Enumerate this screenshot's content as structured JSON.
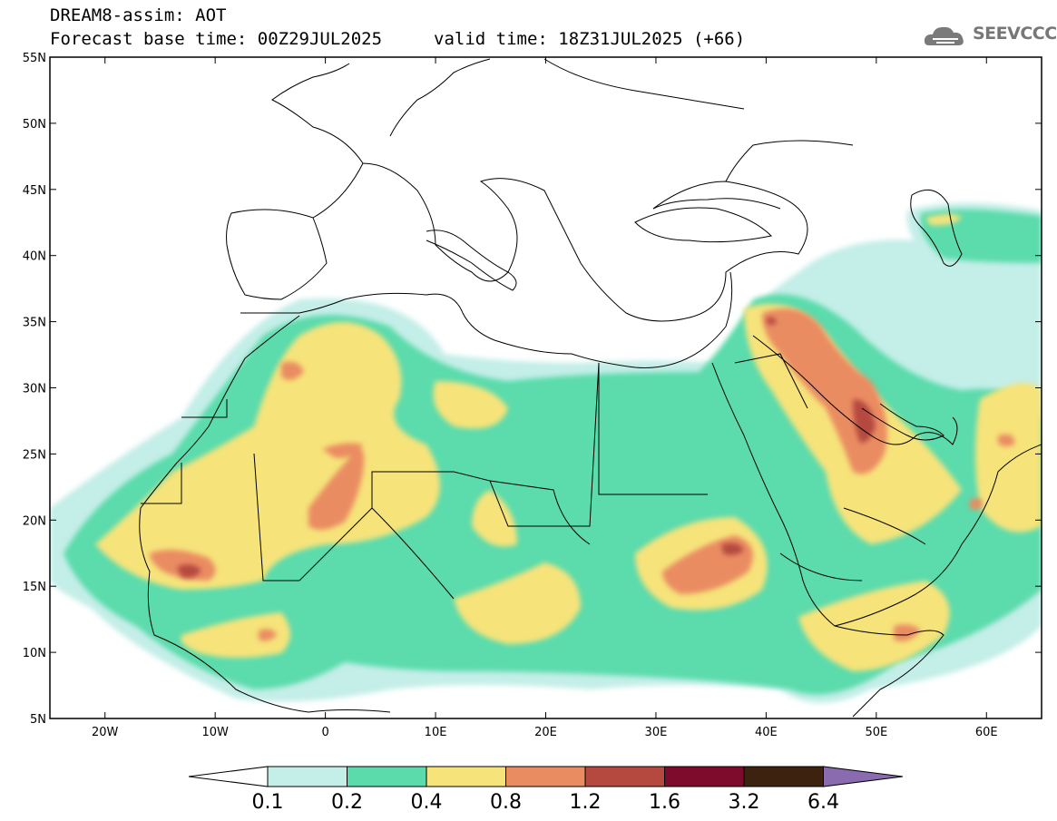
{
  "header": {
    "model_line": "DREAM8-assim: AOT",
    "base_time_line": "Forecast base time: 00Z29JUL2025",
    "valid_time_line": "valid time: 18Z31JUL2025 (+66)",
    "logo_text": "SEEVCCC"
  },
  "map": {
    "lon_range": [
      -25,
      65
    ],
    "lat_range": [
      5,
      55
    ],
    "lat_ticks": [
      {
        "value": 55,
        "label": "55N"
      },
      {
        "value": 50,
        "label": "50N"
      },
      {
        "value": 45,
        "label": "45N"
      },
      {
        "value": 40,
        "label": "40N"
      },
      {
        "value": 35,
        "label": "35N"
      },
      {
        "value": 30,
        "label": "30N"
      },
      {
        "value": 25,
        "label": "25N"
      },
      {
        "value": 20,
        "label": "20N"
      },
      {
        "value": 15,
        "label": "15N"
      },
      {
        "value": 10,
        "label": "10N"
      },
      {
        "value": 5,
        "label": "5N"
      }
    ],
    "lon_ticks": [
      {
        "value": -20,
        "label": "20W"
      },
      {
        "value": -10,
        "label": "10W"
      },
      {
        "value": 0,
        "label": "0"
      },
      {
        "value": 10,
        "label": "10E"
      },
      {
        "value": 20,
        "label": "20E"
      },
      {
        "value": 30,
        "label": "30E"
      },
      {
        "value": 40,
        "label": "40E"
      },
      {
        "value": 50,
        "label": "50E"
      },
      {
        "value": 60,
        "label": "60E"
      }
    ],
    "field_name": "AOT"
  },
  "colorbar": {
    "levels": [
      "0.1",
      "0.2",
      "0.4",
      "0.8",
      "1.2",
      "1.6",
      "3.2",
      "6.4"
    ],
    "colors": [
      "#c4eee8",
      "#5bdbac",
      "#f6e37a",
      "#ea8c62",
      "#b5493f",
      "#7e0a2c",
      "#3d2210",
      "#8a6bb0"
    ],
    "below_color": "#ffffff"
  }
}
